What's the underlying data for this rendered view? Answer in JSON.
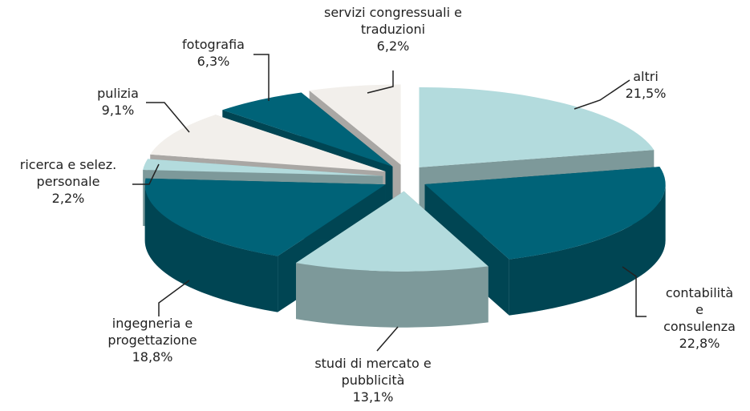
{
  "chart_data": {
    "type": "pie3d",
    "categories": [
      "altri",
      "contabilità e\nconsulenza",
      "studi di mercato e\npubblicità",
      "ingegneria e\nprogettazione",
      "ricerca e selez.\npersonale",
      "pulizia",
      "fotografia",
      "servizi congressuali e\ntraduzioni"
    ],
    "values": [
      21.5,
      22.8,
      13.1,
      18.8,
      2.2,
      9.1,
      6.3,
      6.2
    ],
    "value_labels": [
      "21,5%",
      "22,8%",
      "13,1%",
      "18,8%",
      "2,2%",
      "9,1%",
      "6,3%",
      "6,2%"
    ],
    "colors": [
      "#b3dbdd",
      "#006378",
      "#b3dbdd",
      "#006378",
      "#b3dbdd",
      "#f2efeb",
      "#006378",
      "#f2efeb"
    ]
  }
}
